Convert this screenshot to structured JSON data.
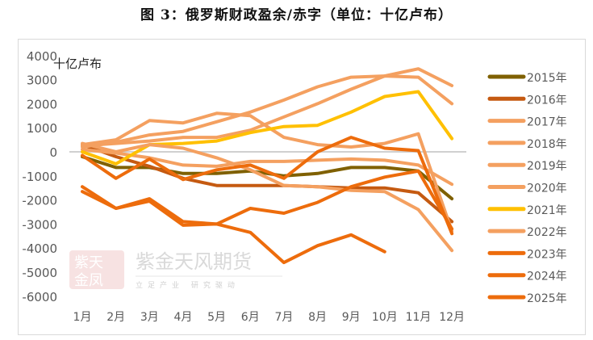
{
  "title": "图 3：俄罗斯财政盈余/赤字（单位：十亿卢布）",
  "watermark": {
    "seal": [
      "紫天",
      "金凤"
    ],
    "name": "紫金天风期货",
    "slogan": "立足产业 研究驱动"
  },
  "chart_data": {
    "type": "line",
    "title": "图 3：俄罗斯财政盈余/赤字（单位：十亿卢布）",
    "xlabel": "",
    "ylabel": "十亿卢布",
    "ylim": [
      -6000,
      4000
    ],
    "yticks": [
      4000,
      3000,
      2000,
      1000,
      0,
      -1000,
      -2000,
      -3000,
      -4000,
      -5000,
      -6000
    ],
    "grid": false,
    "legend_position": "right",
    "categories": [
      "1月",
      "2月",
      "3月",
      "4月",
      "5月",
      "6月",
      "7月",
      "8月",
      "9月",
      "10月",
      "11月",
      "12月"
    ],
    "series": [
      {
        "name": "2015年",
        "color": "#7F6000",
        "values": [
          -200,
          -650,
          -650,
          -900,
          -900,
          -800,
          -1000,
          -900,
          -650,
          -650,
          -800,
          -1950
        ]
      },
      {
        "name": "2016年",
        "color": "#C55A11",
        "values": [
          300,
          -200,
          -600,
          -1100,
          -1400,
          -1400,
          -1400,
          -1450,
          -1500,
          -1500,
          -1700,
          -2900
        ]
      },
      {
        "name": "2017年",
        "color": "#F4A060",
        "values": [
          300,
          500,
          1300,
          1200,
          1600,
          1500,
          600,
          300,
          200,
          350,
          750,
          -3300
        ]
      },
      {
        "name": "2018年",
        "color": "#F4A060",
        "values": [
          200,
          400,
          700,
          850,
          1250,
          1650,
          2150,
          2700,
          3100,
          3150,
          3100,
          2000
        ]
      },
      {
        "name": "2019年",
        "color": "#F4A060",
        "values": [
          250,
          350,
          450,
          600,
          600,
          900,
          1450,
          2000,
          2600,
          3150,
          3450,
          2750
        ]
      },
      {
        "name": "2020年",
        "color": "#F4A060",
        "values": [
          100,
          -50,
          -250,
          -550,
          -600,
          -400,
          -400,
          -350,
          -300,
          -350,
          -550,
          -1350
        ]
      },
      {
        "name": "2021年",
        "color": "#FFC000",
        "values": [
          0,
          -500,
          300,
          350,
          450,
          800,
          1050,
          1100,
          1650,
          2300,
          2500,
          550
        ]
      },
      {
        "name": "2022年",
        "color": "#F4A060",
        "values": [
          350,
          0,
          300,
          150,
          -250,
          -750,
          -1400,
          -1450,
          -1600,
          -1650,
          -2400,
          -4100
        ]
      },
      {
        "name": "2023年",
        "color": "#ED6C0C",
        "values": [
          -150,
          -1100,
          -300,
          -1150,
          -750,
          -550,
          -1100,
          0,
          600,
          150,
          50,
          -3400
        ]
      },
      {
        "name": "2024年",
        "color": "#ED6C0C",
        "values": [
          -1450,
          -2350,
          -1950,
          -2900,
          -3000,
          -2350,
          -2550,
          -2100,
          -1450,
          -1050,
          -800,
          -3200
        ]
      },
      {
        "name": "2025年",
        "color": "#ED6C0C",
        "values": [
          -1650,
          -2350,
          -2050,
          -3050,
          -3000,
          -3350,
          -4600,
          -3900,
          -3450,
          -4150,
          null,
          null
        ]
      }
    ]
  }
}
